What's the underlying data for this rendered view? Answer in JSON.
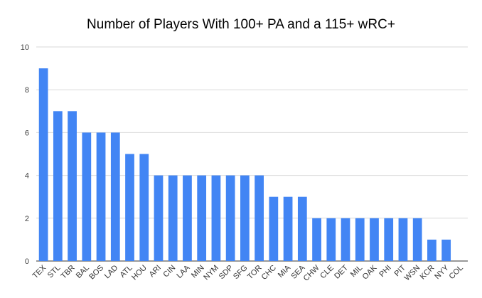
{
  "chart_data": {
    "type": "bar",
    "title": "Number of Players With 100+ PA and a 115+ wRC+",
    "xlabel": "",
    "ylabel": "",
    "categories": [
      "TEX",
      "STL",
      "TBR",
      "BAL",
      "BOS",
      "LAD",
      "ATL",
      "HOU",
      "ARI",
      "CIN",
      "LAA",
      "MIN",
      "NYM",
      "SDP",
      "SFG",
      "TOR",
      "CHC",
      "MIA",
      "SEA",
      "CHW",
      "CLE",
      "DET",
      "MIL",
      "OAK",
      "PHI",
      "PIT",
      "WSN",
      "KCR",
      "NYY",
      "COL"
    ],
    "values": [
      9,
      7,
      7,
      6,
      6,
      6,
      5,
      5,
      4,
      4,
      4,
      4,
      4,
      4,
      4,
      4,
      3,
      3,
      3,
      2,
      2,
      2,
      2,
      2,
      2,
      2,
      2,
      1,
      1,
      0
    ],
    "ylim": [
      0,
      10
    ],
    "yticks": [
      0,
      2,
      4,
      6,
      8,
      10
    ],
    "grid": true,
    "legend": "none",
    "bar_color": "#4285f4"
  }
}
